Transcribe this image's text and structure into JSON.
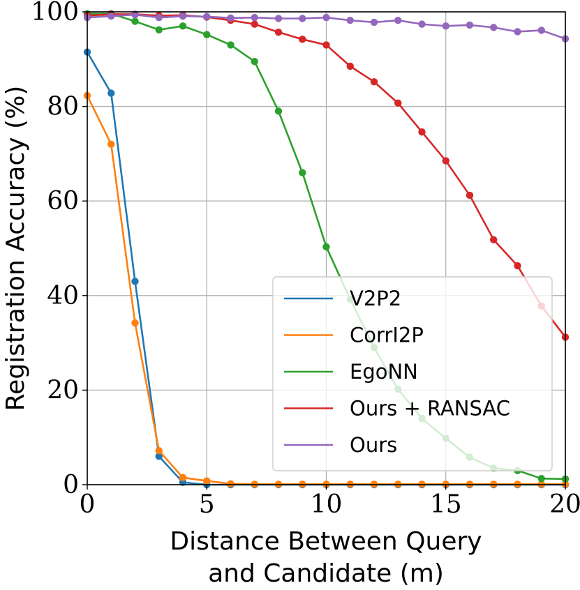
{
  "chart_data": {
    "type": "line",
    "title": "",
    "xlabel": [
      "Distance Between Query",
      "and Candidate (m)"
    ],
    "ylabel": "Registration Accuracy (%)",
    "xlim": [
      0,
      20
    ],
    "ylim": [
      0,
      100
    ],
    "xticks": [
      "0",
      "5",
      "10",
      "15",
      "20"
    ],
    "yticks": [
      "0",
      "20",
      "40",
      "60",
      "80",
      "100"
    ],
    "grid": true,
    "legend_position": "lower-right",
    "x": [
      0,
      1,
      2,
      3,
      4,
      5,
      6,
      7,
      8,
      9,
      10,
      11,
      12,
      13,
      14,
      15,
      16,
      17,
      18,
      19,
      20
    ],
    "series": [
      {
        "name": "V2P2",
        "color": "#1f77b4",
        "values": [
          91.5,
          82.8,
          43.0,
          6.0,
          0.5,
          0.0,
          0.0,
          0.0,
          0.0,
          0.0,
          0.0,
          0.0,
          0.0,
          0.0,
          0.0,
          0.0,
          0.0,
          0.0,
          0.0,
          0.0,
          0.0
        ]
      },
      {
        "name": "CorrI2P",
        "color": "#ff7f0e",
        "values": [
          82.3,
          72.0,
          34.2,
          7.2,
          1.5,
          0.8,
          0.2,
          0.1,
          0.1,
          0.1,
          0.1,
          0.1,
          0.1,
          0.1,
          0.1,
          0.1,
          0.1,
          0.1,
          0.1,
          0.1,
          0.1
        ]
      },
      {
        "name": "EgoNN",
        "color": "#2ca02c",
        "values": [
          99.6,
          99.6,
          98.0,
          96.2,
          97.0,
          95.2,
          93.0,
          89.5,
          79.0,
          66.0,
          50.3,
          39.2,
          29.0,
          20.2,
          14.0,
          9.8,
          5.8,
          3.5,
          3.0,
          1.3,
          1.2
        ]
      },
      {
        "name": "Ours + RANSAC",
        "color": "#d62728",
        "values": [
          99.2,
          99.5,
          99.5,
          99.2,
          99.3,
          98.9,
          98.2,
          97.4,
          95.7,
          94.2,
          93.0,
          88.5,
          85.2,
          80.7,
          74.6,
          68.5,
          61.2,
          51.8,
          46.3,
          37.8,
          31.2
        ]
      },
      {
        "name": "Ours",
        "color": "#9467bd",
        "values": [
          98.8,
          99.1,
          99.4,
          98.8,
          99.1,
          99.0,
          98.7,
          98.8,
          98.6,
          98.6,
          98.8,
          98.2,
          97.8,
          98.2,
          97.4,
          97.0,
          97.2,
          96.7,
          95.8,
          96.1,
          94.3
        ]
      }
    ]
  }
}
